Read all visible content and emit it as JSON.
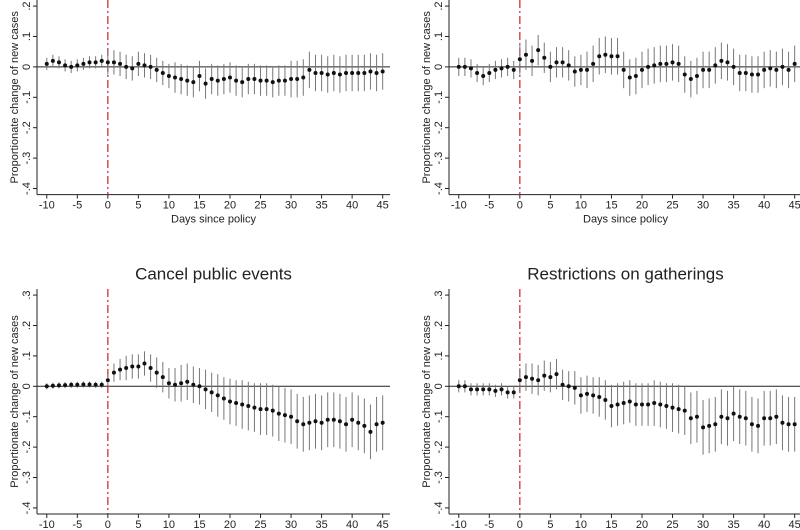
{
  "chart_data": [
    {
      "type": "errorbar",
      "xlabel": "Days since policy",
      "ylabel": "Proportionate change of new cases",
      "x": [
        -10,
        -9,
        -8,
        -7,
        -6,
        -5,
        -4,
        -3,
        -2,
        -1,
        0,
        1,
        2,
        3,
        4,
        5,
        6,
        7,
        8,
        9,
        10,
        11,
        12,
        13,
        14,
        15,
        16,
        17,
        18,
        19,
        20,
        21,
        22,
        23,
        24,
        25,
        26,
        27,
        28,
        29,
        30,
        31,
        32,
        33,
        34,
        35,
        36,
        37,
        38,
        39,
        40,
        41,
        42,
        43,
        44,
        45
      ],
      "values": [
        0.01,
        0.02,
        0.015,
        0.005,
        0,
        0.005,
        0.01,
        0.015,
        0.015,
        0.02,
        0.015,
        0.015,
        0.01,
        0,
        -0.005,
        0.01,
        0.005,
        0,
        -0.01,
        -0.02,
        -0.03,
        -0.035,
        -0.04,
        -0.045,
        -0.05,
        -0.03,
        -0.055,
        -0.04,
        -0.045,
        -0.04,
        -0.035,
        -0.045,
        -0.05,
        -0.04,
        -0.04,
        -0.045,
        -0.045,
        -0.05,
        -0.045,
        -0.045,
        -0.04,
        -0.04,
        -0.035,
        -0.01,
        -0.02,
        -0.02,
        -0.025,
        -0.02,
        -0.025,
        -0.02,
        -0.02,
        -0.02,
        -0.02,
        -0.015,
        -0.02,
        -0.015
      ],
      "errors": [
        0.02,
        0.02,
        0.02,
        0.02,
        0.02,
        0.02,
        0.02,
        0.02,
        0.02,
        0.02,
        0.04,
        0.04,
        0.04,
        0.04,
        0.04,
        0.04,
        0.04,
        0.04,
        0.04,
        0.04,
        0.04,
        0.05,
        0.05,
        0.05,
        0.05,
        0.05,
        0.05,
        0.05,
        0.05,
        0.05,
        0.05,
        0.05,
        0.05,
        0.05,
        0.05,
        0.05,
        0.05,
        0.05,
        0.05,
        0.05,
        0.06,
        0.06,
        0.06,
        0.06,
        0.06,
        0.06,
        0.06,
        0.06,
        0.06,
        0.06,
        0.06,
        0.06,
        0.06,
        0.06,
        0.06,
        0.06
      ],
      "xlim": [
        -11.6,
        46.2
      ],
      "xticks": [
        -10,
        -5,
        0,
        5,
        10,
        15,
        20,
        25,
        30,
        35,
        40,
        45
      ],
      "ylim": [
        -0.42,
        0.22
      ],
      "yticks": [
        {
          "value": 0.2,
          "label": ".2"
        },
        {
          "value": 0.1,
          "label": ".1"
        },
        0,
        {
          "value": -0.1,
          "label": "-.1"
        },
        {
          "value": -0.2,
          "label": "-.2"
        },
        {
          "value": -0.3,
          "label": "-.3"
        },
        {
          "value": -0.4,
          "label": "-.4"
        }
      ],
      "color": "#111111",
      "vline": 0,
      "vline_color": "#cc2222",
      "hline": 0
    },
    {
      "type": "errorbar",
      "xlabel": "Days since policy",
      "ylabel": "Proportionate change of new cases",
      "x": [
        -10,
        -9,
        -8,
        -7,
        -6,
        -5,
        -4,
        -3,
        -2,
        -1,
        0,
        1,
        2,
        3,
        4,
        5,
        6,
        7,
        8,
        9,
        10,
        11,
        12,
        13,
        14,
        15,
        16,
        17,
        18,
        19,
        20,
        21,
        22,
        23,
        24,
        25,
        26,
        27,
        28,
        29,
        30,
        31,
        32,
        33,
        34,
        35,
        36,
        37,
        38,
        39,
        40,
        41,
        42,
        43,
        44,
        45
      ],
      "values": [
        0,
        0,
        -0.005,
        -0.02,
        -0.03,
        -0.02,
        -0.01,
        -0.005,
        0,
        -0.01,
        0.025,
        0.04,
        0.02,
        0.055,
        0.03,
        0,
        0.015,
        0.015,
        0.005,
        -0.015,
        -0.01,
        -0.01,
        0.01,
        0.035,
        0.04,
        0.035,
        0.035,
        -0.01,
        -0.035,
        -0.03,
        -0.01,
        0,
        0.005,
        0.01,
        0.01,
        0.015,
        0.01,
        -0.025,
        -0.04,
        -0.03,
        -0.01,
        -0.01,
        0.005,
        0.02,
        0.015,
        0,
        -0.02,
        -0.02,
        -0.025,
        -0.025,
        -0.01,
        -0.005,
        -0.01,
        0,
        -0.01,
        0.01
      ],
      "errors": [
        0.03,
        0.03,
        0.03,
        0.03,
        0.03,
        0.03,
        0.03,
        0.03,
        0.03,
        0.03,
        0.05,
        0.05,
        0.05,
        0.05,
        0.05,
        0.05,
        0.05,
        0.05,
        0.05,
        0.05,
        0.05,
        0.06,
        0.06,
        0.06,
        0.06,
        0.06,
        0.06,
        0.06,
        0.06,
        0.06,
        0.06,
        0.06,
        0.06,
        0.06,
        0.06,
        0.06,
        0.06,
        0.06,
        0.06,
        0.06,
        0.06,
        0.06,
        0.06,
        0.06,
        0.06,
        0.06,
        0.06,
        0.06,
        0.06,
        0.06,
        0.06,
        0.06,
        0.06,
        0.06,
        0.06,
        0.06
      ],
      "xlim": [
        -11.6,
        46.2
      ],
      "xticks": [
        -10,
        -5,
        0,
        5,
        10,
        15,
        20,
        25,
        30,
        35,
        40,
        45
      ],
      "ylim": [
        -0.42,
        0.22
      ],
      "yticks": [
        {
          "value": 0.2,
          "label": ".2"
        },
        {
          "value": 0.1,
          "label": ".1"
        },
        0,
        {
          "value": -0.1,
          "label": "-.1"
        },
        {
          "value": -0.2,
          "label": "-.2"
        },
        {
          "value": -0.3,
          "label": "-.3"
        },
        {
          "value": -0.4,
          "label": "-.4"
        }
      ],
      "color": "#111111",
      "vline": 0,
      "vline_color": "#cc2222",
      "hline": 0
    },
    {
      "type": "errorbar",
      "title": "Cancel public events",
      "ylabel": "Proportionate change of new cases",
      "x": [
        -10,
        -9,
        -8,
        -7,
        -6,
        -5,
        -4,
        -3,
        -2,
        -1,
        0,
        1,
        2,
        3,
        4,
        5,
        6,
        7,
        8,
        9,
        10,
        11,
        12,
        13,
        14,
        15,
        16,
        17,
        18,
        19,
        20,
        21,
        22,
        23,
        24,
        25,
        26,
        27,
        28,
        29,
        30,
        31,
        32,
        33,
        34,
        35,
        36,
        37,
        38,
        39,
        40,
        41,
        42,
        43,
        44,
        45
      ],
      "values": [
        0,
        0.002,
        0.003,
        0.004,
        0.005,
        0.005,
        0.006,
        0.006,
        0.005,
        0.005,
        0.02,
        0.045,
        0.055,
        0.06,
        0.065,
        0.065,
        0.075,
        0.06,
        0.045,
        0.03,
        0.01,
        0.005,
        0.01,
        0.015,
        0.005,
        0,
        -0.01,
        -0.02,
        -0.03,
        -0.04,
        -0.05,
        -0.055,
        -0.06,
        -0.065,
        -0.07,
        -0.075,
        -0.075,
        -0.08,
        -0.09,
        -0.095,
        -0.1,
        -0.115,
        -0.125,
        -0.12,
        -0.115,
        -0.12,
        -0.11,
        -0.11,
        -0.115,
        -0.125,
        -0.11,
        -0.12,
        -0.13,
        -0.15,
        -0.125,
        -0.12
      ],
      "errors": [
        0.01,
        0.01,
        0.01,
        0.01,
        0.01,
        0.01,
        0.01,
        0.01,
        0.01,
        0.01,
        0.02,
        0.03,
        0.035,
        0.04,
        0.04,
        0.04,
        0.04,
        0.045,
        0.05,
        0.05,
        0.05,
        0.055,
        0.06,
        0.06,
        0.06,
        0.06,
        0.065,
        0.065,
        0.07,
        0.07,
        0.075,
        0.075,
        0.08,
        0.08,
        0.08,
        0.085,
        0.085,
        0.085,
        0.09,
        0.09,
        0.09,
        0.09,
        0.09,
        0.09,
        0.09,
        0.09,
        0.09,
        0.09,
        0.09,
        0.09,
        0.09,
        0.09,
        0.09,
        0.09,
        0.09,
        0.09
      ],
      "xlim": [
        -11.6,
        46.2
      ],
      "xticks": [
        -10,
        -5,
        0,
        5,
        10,
        15,
        20,
        25,
        30,
        35,
        40,
        45
      ],
      "ylim": [
        -0.42,
        0.32
      ],
      "yticks": [
        {
          "value": 0.3,
          "label": ".3"
        },
        {
          "value": 0.2,
          "label": ".2"
        },
        {
          "value": 0.1,
          "label": ".1"
        },
        0,
        {
          "value": -0.1,
          "label": "-.1"
        },
        {
          "value": -0.2,
          "label": "-.2"
        },
        {
          "value": -0.3,
          "label": "-.3"
        },
        {
          "value": -0.4,
          "label": "-.4"
        }
      ],
      "color": "#111111",
      "vline": 0,
      "vline_color": "#cc2222",
      "hline": 0
    },
    {
      "type": "errorbar",
      "title": "Restrictions on gatherings",
      "ylabel": "Proportionate change of new cases",
      "x": [
        -10,
        -9,
        -8,
        -7,
        -6,
        -5,
        -4,
        -3,
        -2,
        -1,
        0,
        1,
        2,
        3,
        4,
        5,
        6,
        7,
        8,
        9,
        10,
        11,
        12,
        13,
        14,
        15,
        16,
        17,
        18,
        19,
        20,
        21,
        22,
        23,
        24,
        25,
        26,
        27,
        28,
        29,
        30,
        31,
        32,
        33,
        34,
        35,
        36,
        37,
        38,
        39,
        40,
        41,
        42,
        43,
        44,
        45
      ],
      "values": [
        0,
        0,
        -0.01,
        -0.01,
        -0.01,
        -0.01,
        -0.015,
        -0.01,
        -0.02,
        -0.02,
        0.02,
        0.03,
        0.025,
        0.02,
        0.035,
        0.03,
        0.04,
        0.005,
        0,
        -0.005,
        -0.03,
        -0.025,
        -0.03,
        -0.035,
        -0.045,
        -0.065,
        -0.06,
        -0.055,
        -0.05,
        -0.06,
        -0.06,
        -0.06,
        -0.055,
        -0.06,
        -0.065,
        -0.07,
        -0.075,
        -0.08,
        -0.105,
        -0.1,
        -0.135,
        -0.13,
        -0.125,
        -0.1,
        -0.105,
        -0.09,
        -0.1,
        -0.105,
        -0.125,
        -0.13,
        -0.105,
        -0.105,
        -0.1,
        -0.12,
        -0.125,
        -0.125
      ],
      "errors": [
        0.02,
        0.02,
        0.02,
        0.02,
        0.02,
        0.02,
        0.02,
        0.02,
        0.02,
        0.02,
        0.04,
        0.045,
        0.05,
        0.05,
        0.05,
        0.05,
        0.05,
        0.05,
        0.05,
        0.055,
        0.06,
        0.06,
        0.06,
        0.065,
        0.065,
        0.07,
        0.07,
        0.07,
        0.07,
        0.07,
        0.07,
        0.07,
        0.075,
        0.075,
        0.075,
        0.08,
        0.08,
        0.08,
        0.085,
        0.085,
        0.09,
        0.09,
        0.09,
        0.09,
        0.09,
        0.09,
        0.09,
        0.09,
        0.09,
        0.09,
        0.09,
        0.09,
        0.09,
        0.09,
        0.09,
        0.09
      ],
      "xlim": [
        -11.6,
        46.2
      ],
      "xticks": [
        -10,
        -5,
        0,
        5,
        10,
        15,
        20,
        25,
        30,
        35,
        40,
        45
      ],
      "ylim": [
        -0.42,
        0.32
      ],
      "yticks": [
        {
          "value": 0.3,
          "label": ".3"
        },
        {
          "value": 0.2,
          "label": ".2"
        },
        {
          "value": 0.1,
          "label": ".1"
        },
        0,
        {
          "value": -0.1,
          "label": "-.1"
        },
        {
          "value": -0.2,
          "label": "-.2"
        },
        {
          "value": -0.3,
          "label": "-.3"
        },
        {
          "value": -0.4,
          "label": "-.4"
        }
      ],
      "color": "#111111",
      "vline": 0,
      "vline_color": "#cc2222",
      "hline": 0
    }
  ]
}
